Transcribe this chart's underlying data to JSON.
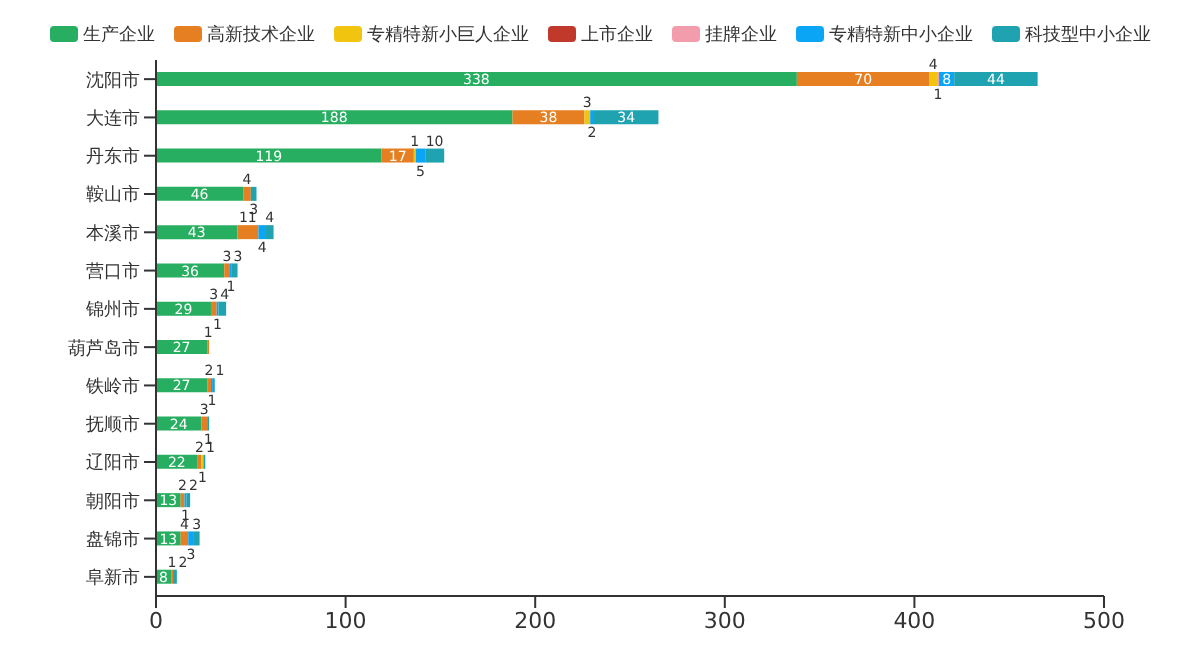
{
  "chart_data": {
    "type": "bar",
    "orientation": "horizontal",
    "stacked": true,
    "categories": [
      "沈阳市",
      "大连市",
      "丹东市",
      "鞍山市",
      "本溪市",
      "营口市",
      "锦州市",
      "葫芦岛市",
      "铁岭市",
      "抚顺市",
      "辽阳市",
      "朝阳市",
      "盘锦市",
      "阜新市"
    ],
    "series": [
      {
        "name": "生产企业",
        "color": "#27ae60",
        "values": [
          338,
          188,
          119,
          46,
          43,
          36,
          29,
          27,
          27,
          24,
          22,
          13,
          13,
          8
        ]
      },
      {
        "name": "高新技术企业",
        "color": "#e67e22",
        "values": [
          70,
          38,
          17,
          4,
          11,
          3,
          3,
          1,
          2,
          3,
          2,
          2,
          4,
          1
        ]
      },
      {
        "name": "专精特新小巨人企业",
        "color": "#f1c40f",
        "values": [
          4,
          3,
          1,
          null,
          null,
          null,
          null,
          null,
          null,
          null,
          1,
          null,
          null,
          null
        ]
      },
      {
        "name": "上市企业",
        "color": "#c0392b",
        "values": [
          null,
          null,
          null,
          null,
          null,
          null,
          null,
          null,
          null,
          null,
          null,
          null,
          null,
          null
        ]
      },
      {
        "name": "挂牌企业",
        "color": "#f39cab",
        "values": [
          1,
          null,
          null,
          null,
          null,
          null,
          null,
          null,
          null,
          null,
          null,
          null,
          null,
          null
        ]
      },
      {
        "name": "专精特新中小企业",
        "color": "#0aa6f5",
        "values": [
          8,
          2,
          5,
          null,
          4,
          1,
          1,
          null,
          1,
          null,
          null,
          1,
          3,
          null
        ]
      },
      {
        "name": "科技型中小企业",
        "color": "#1fa3b0",
        "values": [
          44,
          34,
          10,
          3,
          4,
          3,
          4,
          null,
          1,
          1,
          1,
          2,
          3,
          2
        ]
      }
    ],
    "xlim": [
      0,
      500
    ],
    "xticks": [
      0,
      100,
      200,
      300,
      400,
      500
    ],
    "grid": false,
    "legend": "top",
    "data_labels": true
  }
}
